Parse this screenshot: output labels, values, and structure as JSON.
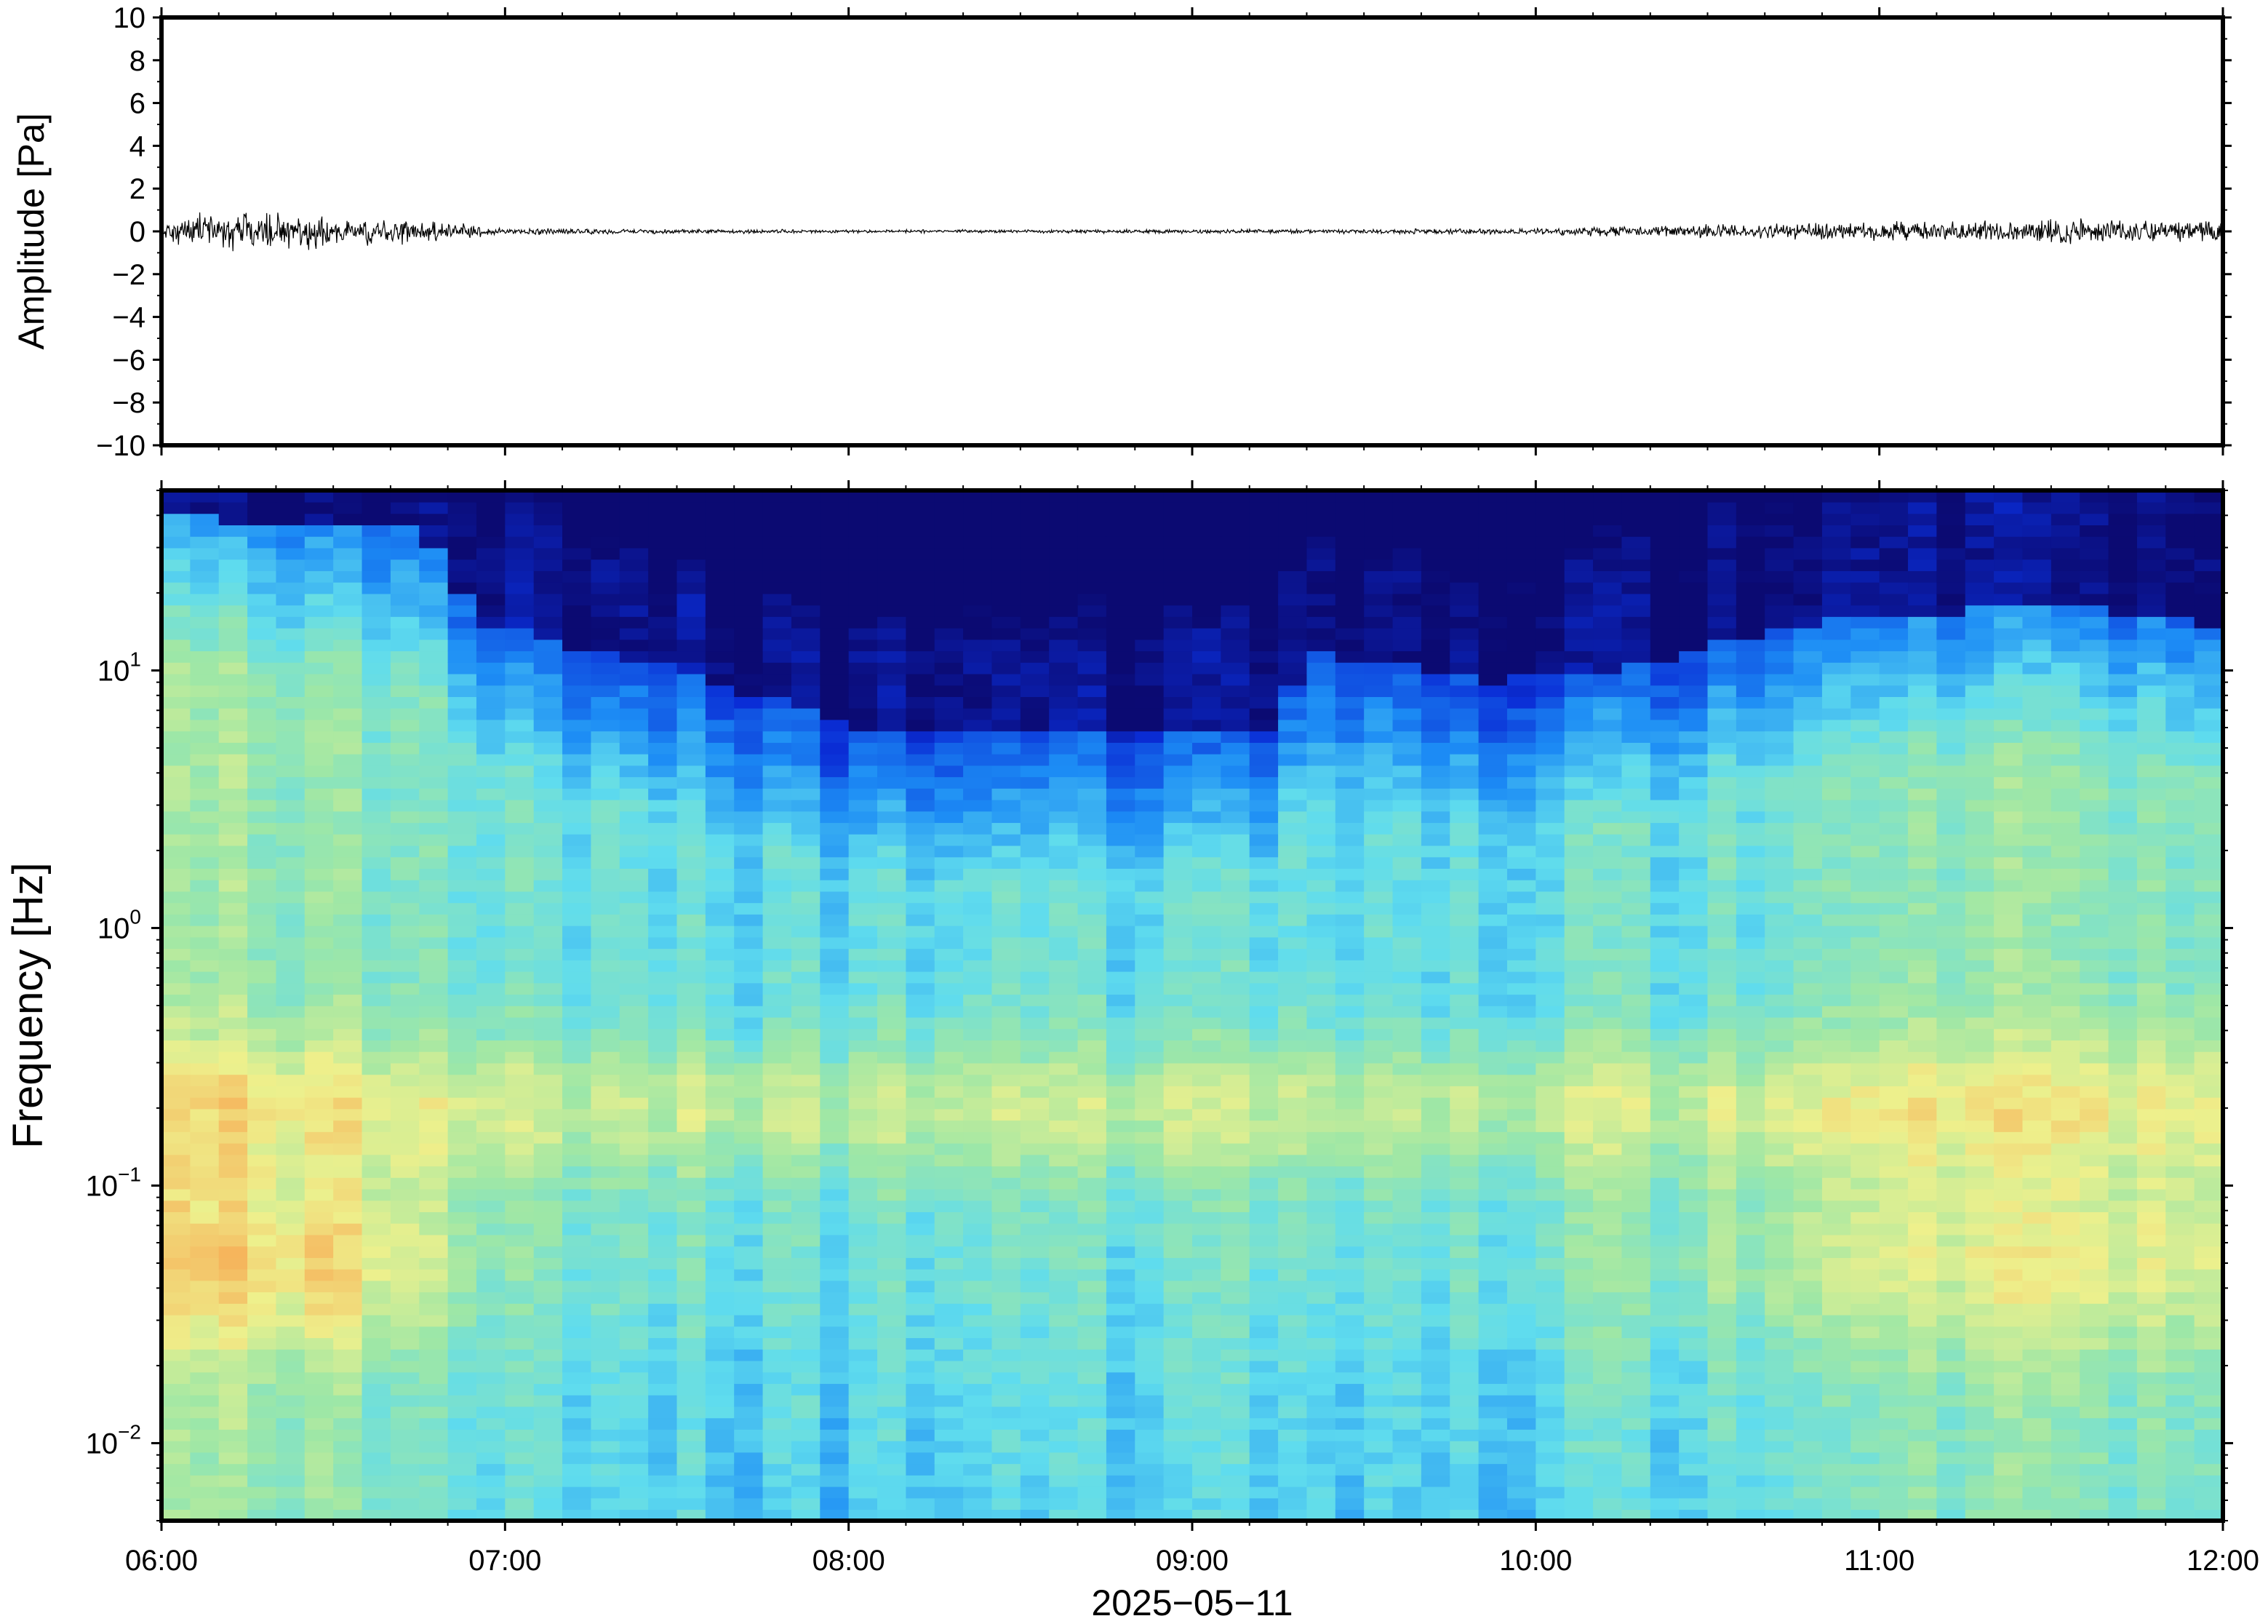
{
  "chart_data": [
    {
      "type": "line",
      "ylabel": "Amplitude [Pa]",
      "ylim": [
        -10,
        10
      ],
      "yticks": [
        10,
        8,
        6,
        4,
        2,
        0,
        -2,
        -4,
        -6,
        -8,
        -10
      ],
      "ytick_labels": [
        "10",
        "8",
        "6",
        "4",
        "2",
        "0",
        "−2",
        "−4",
        "−6",
        "−8",
        "−10"
      ],
      "xlim": [
        "06:00",
        "12:00"
      ],
      "trace_color": "#000000",
      "envelope": {
        "x": [
          "06:00",
          "06:15",
          "06:30",
          "06:45",
          "07:00",
          "07:30",
          "08:00",
          "08:30",
          "09:00",
          "09:30",
          "10:00",
          "10:30",
          "11:00",
          "11:30",
          "12:00"
        ],
        "amplitude": [
          0.6,
          0.7,
          0.6,
          0.4,
          0.12,
          0.08,
          0.06,
          0.06,
          0.07,
          0.08,
          0.12,
          0.25,
          0.35,
          0.45,
          0.4
        ]
      }
    },
    {
      "type": "heatmap",
      "ylabel": "Frequency [Hz]",
      "xlabel": "2025−05−11",
      "y_scale": "log",
      "ylim": [
        0.005,
        50
      ],
      "yticks": [
        0.01,
        0.1,
        1,
        10
      ],
      "ytick_labels": [
        {
          "base": "10",
          "exp": "−2"
        },
        {
          "base": "10",
          "exp": "−1"
        },
        {
          "base": "10",
          "exp": "0"
        },
        {
          "base": "10",
          "exp": "1"
        }
      ],
      "x_ticks": [
        "06:00",
        "07:00",
        "08:00",
        "09:00",
        "10:00",
        "11:00",
        "12:00"
      ],
      "colormap": "jet",
      "colormap_stops": [
        "#0b0a72",
        "#0a2dd6",
        "#1c8cf5",
        "#5fdcee",
        "#9ee7a6",
        "#eef08c",
        "#f6b25a",
        "#e8443c"
      ],
      "features": {
        "upper_cutoff_freq_hz": {
          "x": [
            "06:00",
            "06:45",
            "06:55",
            "07:30",
            "08:00",
            "08:30",
            "09:00",
            "09:15",
            "09:20",
            "09:50",
            "10:15",
            "10:45",
            "11:30",
            "12:00"
          ],
          "values": [
            40,
            35,
            15,
            10,
            6,
            5.5,
            6,
            6,
            12,
            9,
            10,
            15,
            18,
            15
          ]
        },
        "microbarom_peak_hz": 0.2,
        "low_freq_peak_hz": 0.05
      }
    }
  ]
}
